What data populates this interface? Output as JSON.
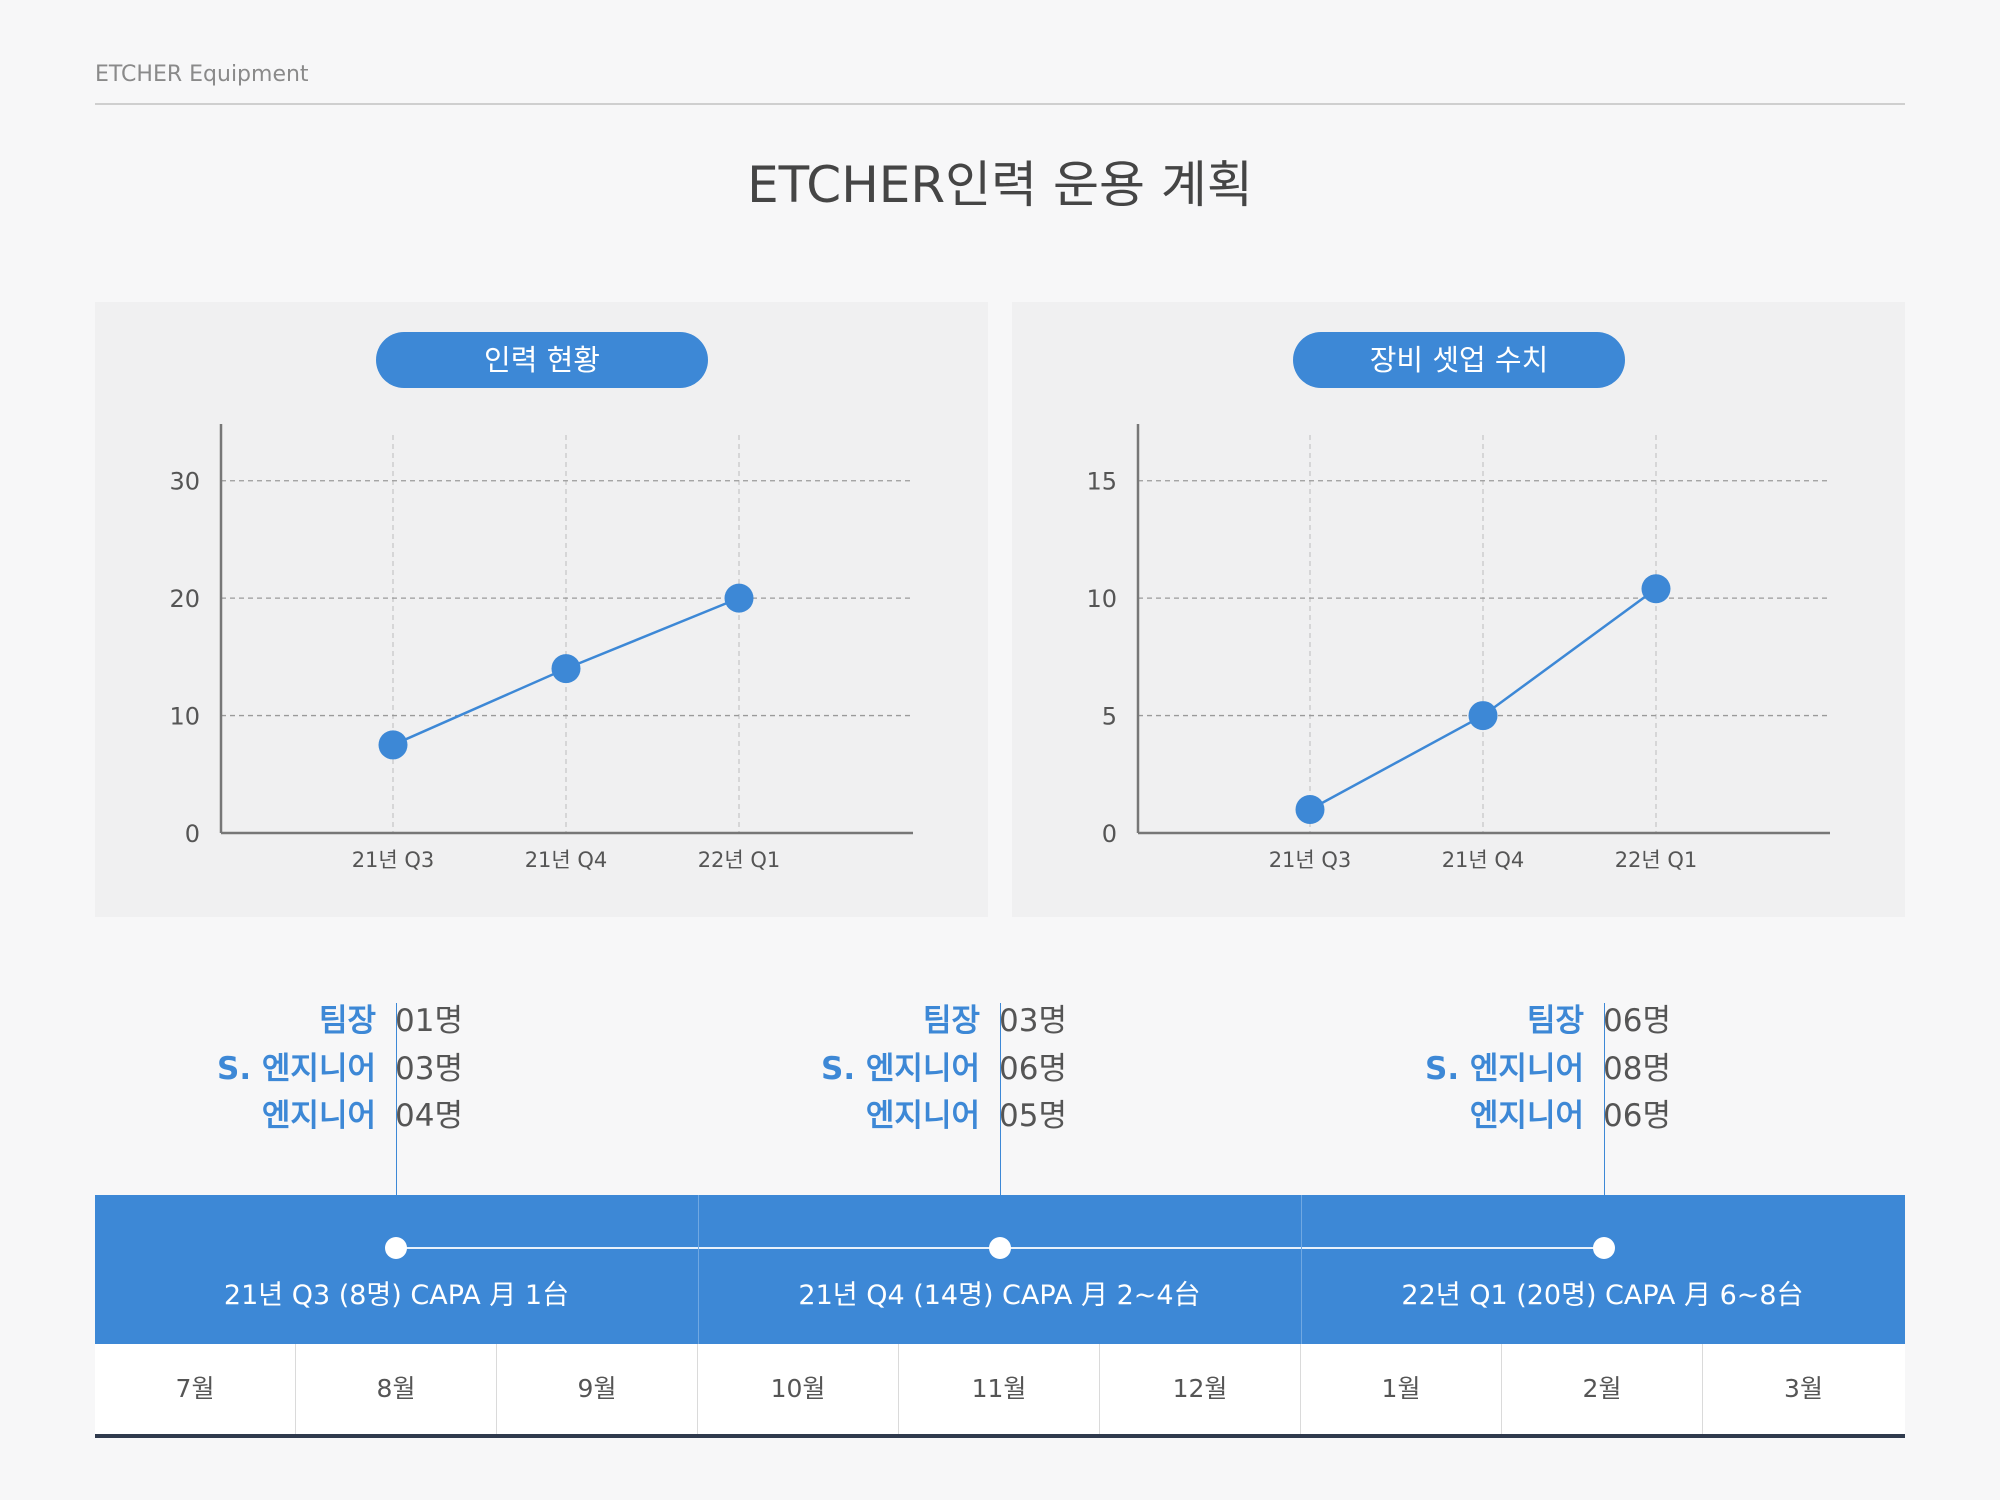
{
  "header": {
    "brand": "ETCHER Equipment",
    "title": "ETCHER인력 운용 계획"
  },
  "chart_data": [
    {
      "type": "line",
      "title": "인력 현황",
      "categories": [
        "21년 Q3",
        "21년 Q4",
        "22년 Q1"
      ],
      "values": [
        7.5,
        14,
        20
      ],
      "yticks": [
        0,
        10,
        20,
        30
      ],
      "ylim": [
        0,
        35
      ],
      "color": "#3d88d6"
    },
    {
      "type": "line",
      "title": "장비 셋업 수치",
      "categories": [
        "21년 Q3",
        "21년 Q4",
        "22년 Q1"
      ],
      "values": [
        1,
        5,
        10.4
      ],
      "yticks": [
        0,
        5,
        10,
        15
      ],
      "ylim": [
        0,
        17.5
      ],
      "color": "#3d88d6"
    }
  ],
  "staffing": [
    {
      "rows": [
        {
          "label": "팀장",
          "value": "01명"
        },
        {
          "label": "S. 엔지니어",
          "value": "03명"
        },
        {
          "label": "엔지니어",
          "value": "04명"
        }
      ]
    },
    {
      "rows": [
        {
          "label": "팀장",
          "value": "03명"
        },
        {
          "label": "S. 엔지니어",
          "value": "06명"
        },
        {
          "label": "엔지니어",
          "value": "05명"
        }
      ]
    },
    {
      "rows": [
        {
          "label": "팀장",
          "value": "06명"
        },
        {
          "label": "S. 엔지니어",
          "value": "08명"
        },
        {
          "label": "엔지니어",
          "value": "06명"
        }
      ]
    }
  ],
  "timeline": {
    "quarters": [
      "21년 Q3 (8명) CAPA 月 1台",
      "21년 Q4 (14명) CAPA 月 2~4台",
      "22년 Q1 (20명) CAPA 月 6~8台"
    ],
    "months": [
      "7월",
      "8월",
      "9월",
      "10월",
      "11월",
      "12월",
      "1월",
      "2월",
      "3월"
    ]
  }
}
